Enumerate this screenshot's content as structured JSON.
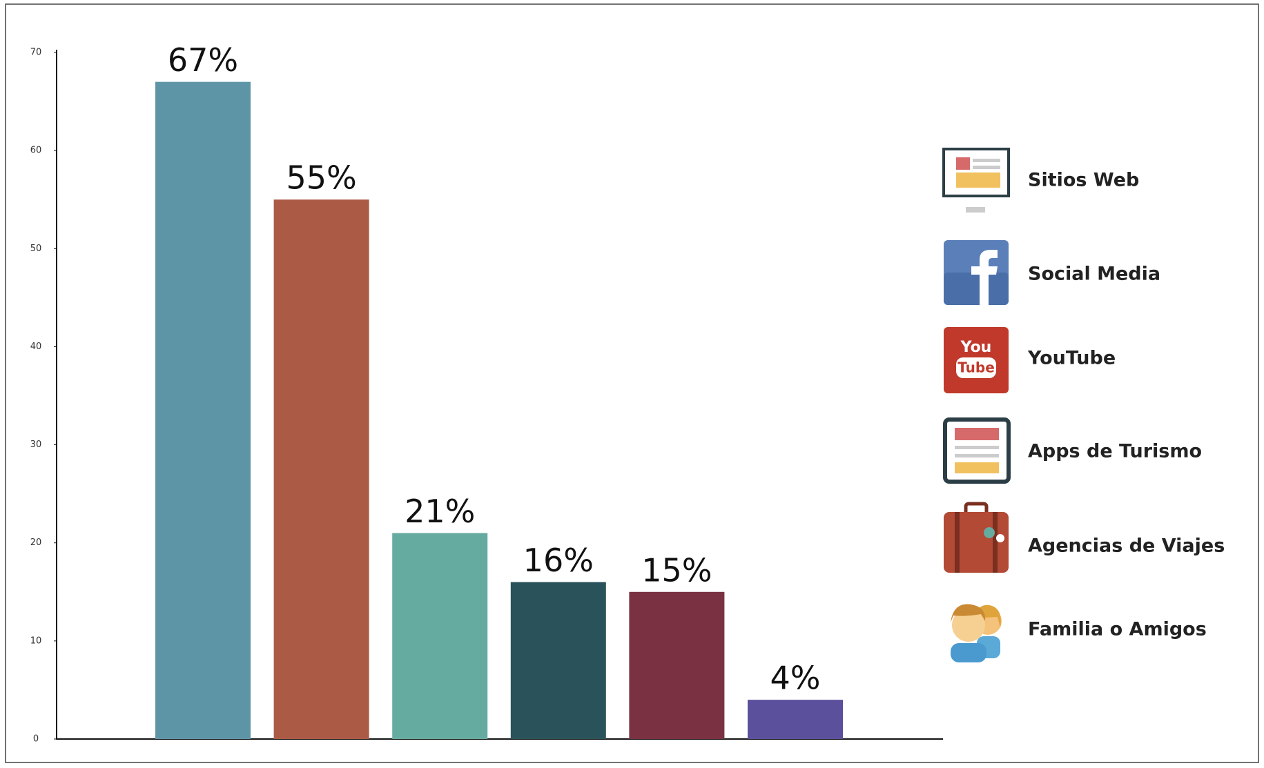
{
  "chart_data": {
    "type": "bar",
    "categories": [
      "Sitios Web",
      "Social Media",
      "YouTube",
      "Apps de Turismo",
      "Agencias de Viajes",
      "Familia o Amigos"
    ],
    "values": [
      67,
      55,
      21,
      16,
      15,
      4
    ],
    "value_labels": [
      "67%",
      "55%",
      "21%",
      "16%",
      "15%",
      "4%"
    ],
    "colors": [
      "#5e95a6",
      "#ab5b45",
      "#66aba0",
      "#2a525a",
      "#7a3142",
      "#5a509b"
    ],
    "ylim": [
      0,
      70
    ],
    "yticks": [
      0,
      10,
      20,
      30,
      40,
      50,
      60,
      70
    ]
  }
}
